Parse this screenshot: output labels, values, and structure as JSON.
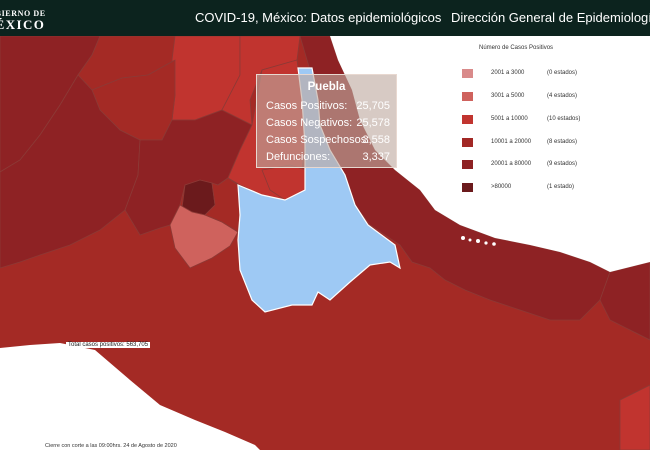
{
  "header": {
    "logo_line1": "GOBIERNO DE",
    "logo_line2": "MÉXICO",
    "title": "COVID-19, México: Datos epidemiológicos",
    "agency": "Dirección General de Epidemiología"
  },
  "tooltip": {
    "state": "Puebla",
    "rows": [
      {
        "label": "Casos Positivos:",
        "value": "25,705"
      },
      {
        "label": "Casos Negativos:",
        "value": "25,578"
      },
      {
        "label": "Casos Sospechosos:",
        "value": "3,558"
      },
      {
        "label": "Defunciones:",
        "value": "3,337"
      }
    ]
  },
  "legend": {
    "title": "Número de Casos Positivos",
    "items": [
      {
        "range": "2001 a 3000",
        "count": "(0 estados)",
        "color": "#d98a8a"
      },
      {
        "range": "3001 a 5000",
        "count": "(4 estados)",
        "color": "#cf625d"
      },
      {
        "range": "5001 a 10000",
        "count": "(10 estados)",
        "color": "#c1342f"
      },
      {
        "range": "10001 a 20000",
        "count": "(8 estados)",
        "color": "#a22825"
      },
      {
        "range": "20001 a 80000",
        "count": "(9 estados)",
        "color": "#8e2224"
      },
      {
        "range": ">80000",
        "count": "(1 estado)",
        "color": "#6b1a1c"
      }
    ]
  },
  "map": {
    "selected_state": "Puebla",
    "selected_color": "#9ec9f4",
    "ocean_color": "#ffffff"
  },
  "total_positive": "Total casos positivos: 563,705",
  "footer_note": "Cierre con corte a las 09:00hrs. 24 de Agosto de 2020"
}
